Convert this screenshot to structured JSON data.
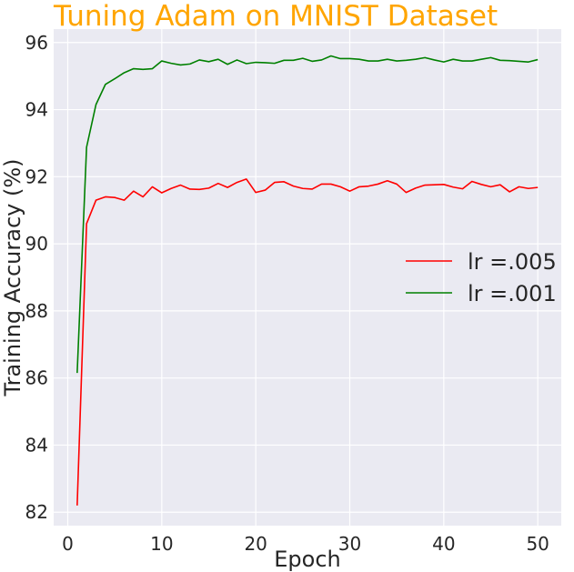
{
  "chart_data": {
    "type": "line",
    "title": "Tuning Adam on MNIST Dataset",
    "title_color": "#FFA500",
    "xlabel": "Epoch",
    "ylabel": "Training Accuracy (%)",
    "xlim": [
      -1.5,
      52.5
    ],
    "ylim": [
      81.6,
      96.4
    ],
    "xticks": [
      0,
      10,
      20,
      30,
      40,
      50
    ],
    "yticks": [
      82,
      84,
      86,
      88,
      90,
      92,
      94,
      96
    ],
    "grid": true,
    "background_color": "#EAEAF2",
    "grid_color": "#FFFFFF",
    "legend_position": "center-right",
    "x": [
      1,
      2,
      3,
      4,
      5,
      6,
      7,
      8,
      9,
      10,
      11,
      12,
      13,
      14,
      15,
      16,
      17,
      18,
      19,
      20,
      21,
      22,
      23,
      24,
      25,
      26,
      27,
      28,
      29,
      30,
      31,
      32,
      33,
      34,
      35,
      36,
      37,
      38,
      39,
      40,
      41,
      42,
      43,
      44,
      45,
      46,
      47,
      48,
      49,
      50
    ],
    "series": [
      {
        "name": "lr =.005",
        "color": "#FF0000",
        "values": [
          82.2,
          90.6,
          91.3,
          91.4,
          91.38,
          91.3,
          91.57,
          91.4,
          91.7,
          91.52,
          91.65,
          91.75,
          91.63,
          91.62,
          91.66,
          91.8,
          91.68,
          91.83,
          91.93,
          91.53,
          91.6,
          91.83,
          91.85,
          91.72,
          91.65,
          91.63,
          91.78,
          91.78,
          91.7,
          91.57,
          91.7,
          91.72,
          91.78,
          91.88,
          91.78,
          91.53,
          91.66,
          91.75,
          91.76,
          91.77,
          91.69,
          91.64,
          91.86,
          91.77,
          91.7,
          91.76,
          91.55,
          91.7,
          91.65,
          91.68
        ]
      },
      {
        "name": "lr =.001",
        "color": "#008000",
        "values": [
          86.15,
          92.88,
          94.15,
          94.75,
          94.92,
          95.1,
          95.22,
          95.2,
          95.22,
          95.45,
          95.38,
          95.33,
          95.36,
          95.48,
          95.43,
          95.5,
          95.35,
          95.48,
          95.37,
          95.41,
          95.4,
          95.38,
          95.47,
          95.47,
          95.53,
          95.44,
          95.48,
          95.6,
          95.52,
          95.52,
          95.5,
          95.45,
          95.45,
          95.5,
          95.45,
          95.47,
          95.5,
          95.55,
          95.48,
          95.42,
          95.5,
          95.45,
          95.45,
          95.5,
          95.55,
          95.47,
          95.46,
          95.44,
          95.42,
          95.49
        ]
      }
    ]
  }
}
